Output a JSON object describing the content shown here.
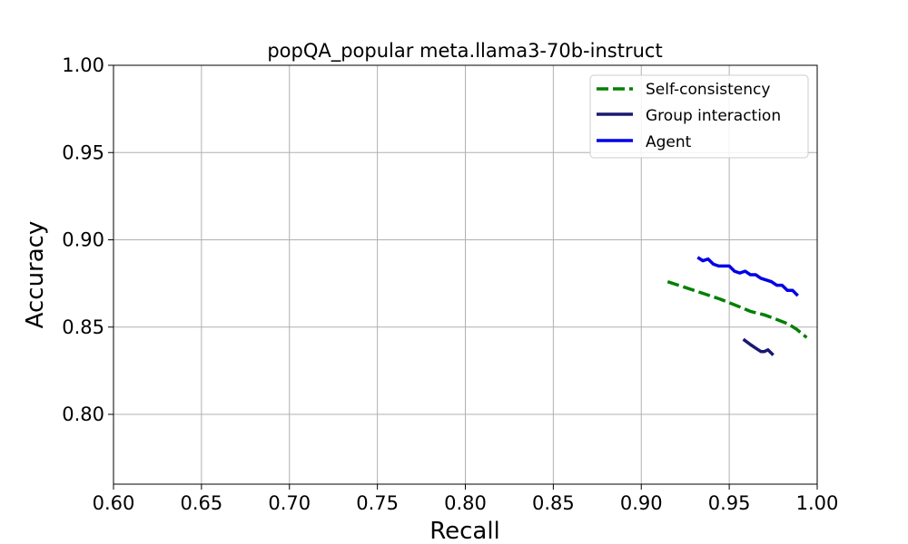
{
  "chart_data": {
    "type": "line",
    "title": "popQA_popular meta.llama3-70b-instruct",
    "xlabel": "Recall",
    "ylabel": "Accuracy",
    "xlim": [
      0.6,
      1.0
    ],
    "ylim": [
      0.76,
      1.0
    ],
    "grid": true,
    "legend_position": "top-right",
    "xticks": [
      "0.60",
      "0.65",
      "0.70",
      "0.75",
      "0.80",
      "0.85",
      "0.90",
      "0.95",
      "1.00"
    ],
    "yticks": [
      "0.80",
      "0.85",
      "0.90",
      "0.95",
      "1.00"
    ],
    "series": [
      {
        "name": "Self-consistency",
        "color": "#008000",
        "style": "dashed",
        "x": [
          0.915,
          0.93,
          0.945,
          0.955,
          0.962,
          0.97,
          0.978,
          0.983,
          0.988,
          0.994
        ],
        "y": [
          0.876,
          0.871,
          0.866,
          0.862,
          0.859,
          0.857,
          0.854,
          0.852,
          0.849,
          0.844
        ]
      },
      {
        "name": "Group interaction",
        "color": "#191970",
        "style": "solid",
        "x": [
          0.958,
          0.962,
          0.965,
          0.968,
          0.97,
          0.972,
          0.975
        ],
        "y": [
          0.843,
          0.84,
          0.838,
          0.836,
          0.836,
          0.837,
          0.834
        ]
      },
      {
        "name": "Agent",
        "color": "#0000e6",
        "style": "solid",
        "x": [
          0.932,
          0.935,
          0.938,
          0.941,
          0.944,
          0.947,
          0.95,
          0.953,
          0.956,
          0.959,
          0.962,
          0.965,
          0.968,
          0.971,
          0.974,
          0.977,
          0.98,
          0.983,
          0.986,
          0.989
        ],
        "y": [
          0.89,
          0.888,
          0.889,
          0.886,
          0.885,
          0.885,
          0.885,
          0.882,
          0.881,
          0.882,
          0.88,
          0.88,
          0.878,
          0.877,
          0.876,
          0.874,
          0.874,
          0.871,
          0.871,
          0.868
        ]
      }
    ]
  }
}
